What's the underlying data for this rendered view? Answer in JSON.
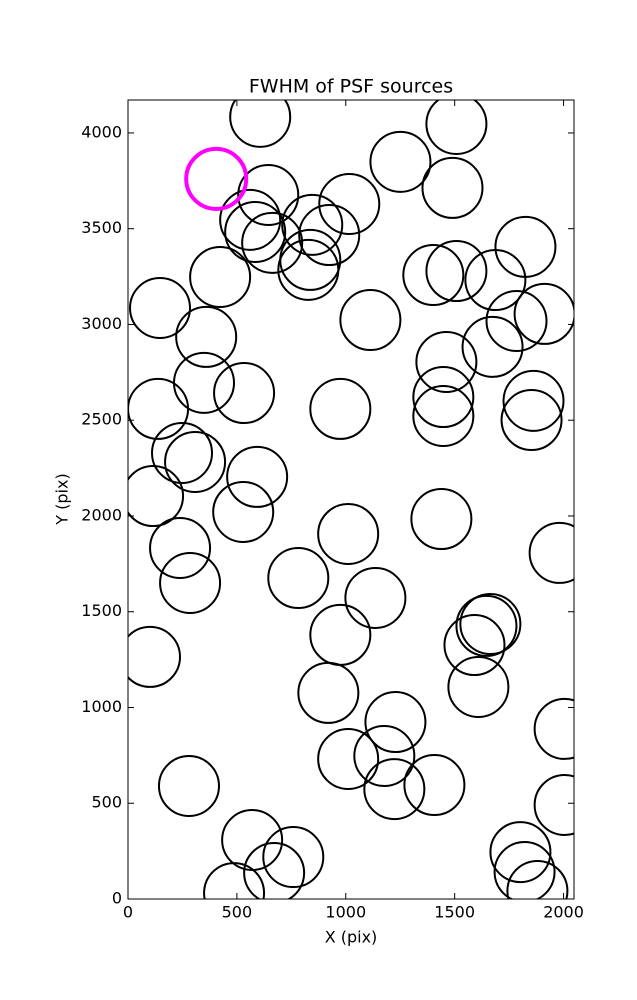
{
  "chart_data": {
    "type": "scatter",
    "title": "FWHM of PSF sources",
    "x_label": "X (pix)",
    "y_label": "Y (pix)",
    "xlim": [
      0,
      2048
    ],
    "ylim": [
      0,
      4172
    ],
    "xticks": [
      0,
      500,
      1000,
      1500,
      2000
    ],
    "yticks": [
      0,
      500,
      1000,
      1500,
      2000,
      2500,
      3000,
      3500,
      4000
    ],
    "series": [
      {
        "color": "#000000",
        "x": [
          607,
          1508,
          1251,
          1490,
          644,
          1016,
          561,
          846,
          584,
          924,
          662,
          837,
          828,
          1825,
          423,
          1402,
          1508,
          1687,
          147,
          1913,
          1113,
          1784,
          359,
          1674,
          1462,
          349,
          533,
          1448,
          1862,
          138,
          975,
          1448,
          1853,
          248,
          308,
          593,
          115,
          529,
          1439,
          1011,
          239,
          1982,
          782,
          285,
          1136,
          1664,
          1646,
          1591,
          975,
          101,
          1609,
          920,
          2005,
          1228,
          1011,
          1177,
          2005,
          280,
          1223,
          1407,
          570,
          759,
          1802,
          671,
          1821,
          487,
          1880
        ],
        "values": [
          4084,
          4047,
          3849,
          3713,
          3676,
          3629,
          3546,
          3520,
          3483,
          3467,
          3426,
          3337,
          3285,
          3405,
          3248,
          3258,
          3279,
          3232,
          3086,
          3055,
          3023,
          3018,
          2935,
          2883,
          2804,
          2695,
          2642,
          2621,
          2601,
          2559,
          2559,
          2522,
          2501,
          2329,
          2282,
          2204,
          2104,
          2021,
          1984,
          1906,
          1833,
          1807,
          1676,
          1650,
          1572,
          1436,
          1426,
          1326,
          1379,
          1264,
          1107,
          1076,
          888,
          924,
          731,
          747,
          491,
          590,
          574,
          595,
          308,
          219,
          245,
          136,
          141,
          31,
          42
        ]
      },
      {
        "color": "#ff00ff",
        "x": [
          405
        ],
        "values": [
          3760
        ]
      }
    ]
  }
}
